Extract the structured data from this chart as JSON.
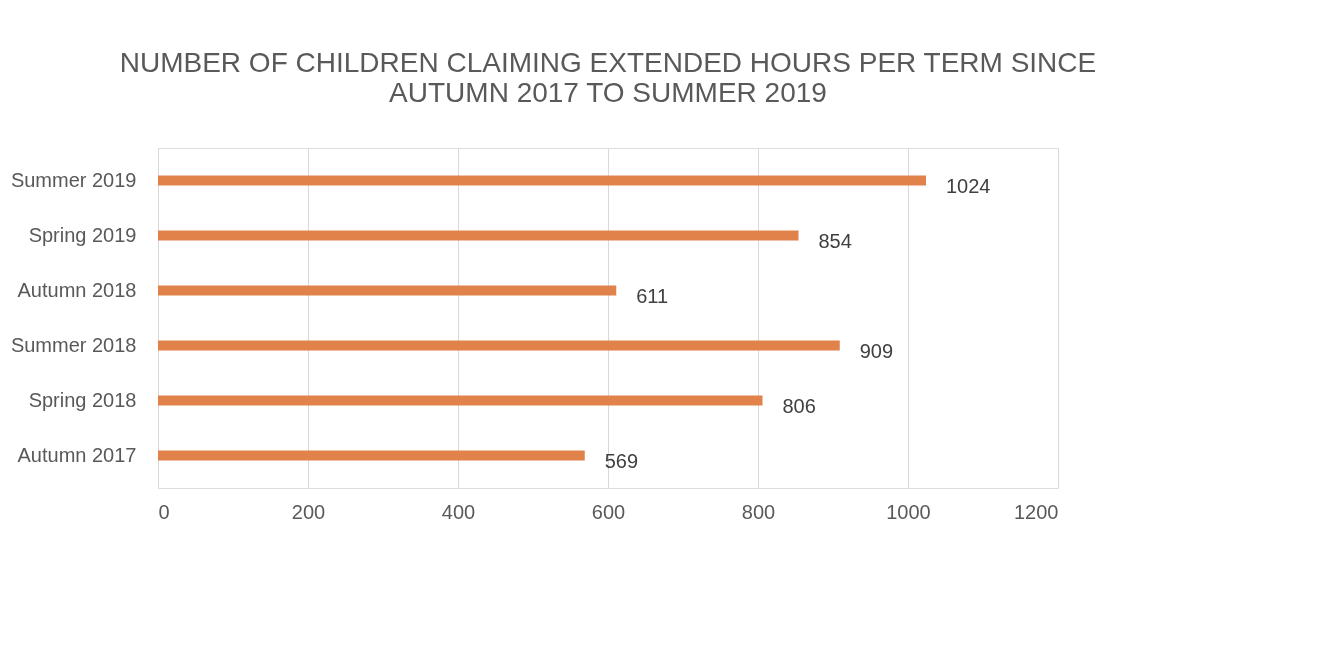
{
  "chart_data": {
    "type": "bar",
    "orientation": "horizontal",
    "title": "NUMBER OF CHILDREN CLAIMING EXTENDED HOURS PER TERM SINCE AUTUMN 2017 TO SUMMER 2019",
    "categories": [
      "Summer 2019",
      "Spring 2019",
      "Autumn 2018",
      "Summer 2018",
      "Spring 2018",
      "Autumn 2017"
    ],
    "values": [
      1024,
      854,
      611,
      909,
      806,
      569
    ],
    "color": "#e0824a",
    "xlim": [
      0,
      1200
    ],
    "xticks": [
      0,
      200,
      400,
      600,
      800,
      1000,
      1200
    ],
    "grid": "x",
    "data_labels": true
  }
}
